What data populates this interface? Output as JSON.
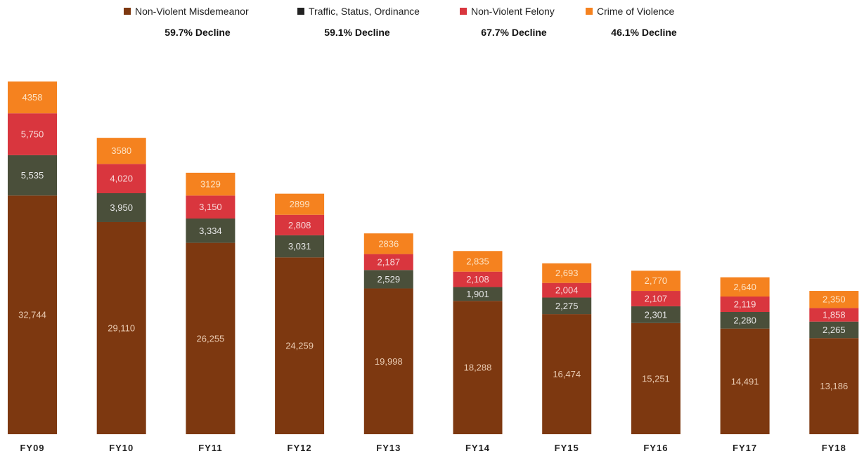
{
  "legend": [
    {
      "name": "Non-Violent Misdemeanor",
      "color": "#7d3810",
      "decline": "59.7% Decline"
    },
    {
      "name": "Traffic, Status, Ordinance",
      "color": "#4a4f3a",
      "decline": "59.1% Decline"
    },
    {
      "name": "Non-Violent Felony",
      "color": "#d9363e",
      "decline": "67.7% Decline"
    },
    {
      "name": "Crime of Violence",
      "color": "#f5821f",
      "decline": "46.1% Decline"
    }
  ],
  "chart_data": {
    "type": "bar",
    "stacked": true,
    "title": "",
    "xlabel": "",
    "ylabel": "",
    "categories": [
      "FY09",
      "FY10",
      "FY11",
      "FY12",
      "FY13",
      "FY14",
      "FY15",
      "FY16",
      "FY17",
      "FY18"
    ],
    "series": [
      {
        "name": "Non-Violent Misdemeanor",
        "color": "#7d3810",
        "values": [
          32744,
          29110,
          26255,
          24259,
          19998,
          18288,
          16474,
          15251,
          14491,
          13186
        ],
        "labels": [
          "32,744",
          "29,110",
          "26,255",
          "24,259",
          "19,998",
          "18,288",
          "16,474",
          "15,251",
          "14,491",
          "13,186"
        ]
      },
      {
        "name": "Traffic, Status, Ordinance",
        "color": "#4a4f3a",
        "values": [
          5535,
          3950,
          3334,
          3031,
          2529,
          1901,
          2275,
          2301,
          2280,
          2265
        ],
        "labels": [
          "5,535",
          "3,950",
          "3,334",
          "3,031",
          "2,529",
          "1,901",
          "2,275",
          "2,301",
          "2,280",
          "2,265"
        ]
      },
      {
        "name": "Non-Violent Felony",
        "color": "#d9363e",
        "values": [
          5750,
          4020,
          3150,
          2808,
          2187,
          2108,
          2004,
          2107,
          2119,
          1858
        ],
        "labels": [
          "5,750",
          "4,020",
          "3,150",
          "2,808",
          "2,187",
          "2,108",
          "2,004",
          "2,107",
          "2,119",
          "1,858"
        ]
      },
      {
        "name": "Crime of Violence",
        "color": "#f5821f",
        "values": [
          4358,
          3580,
          3129,
          2899,
          2836,
          2835,
          2693,
          2770,
          2640,
          2350
        ],
        "labels": [
          "4358",
          "3580",
          "3129",
          "2899",
          "2836",
          "2,835",
          "2,693",
          "2,770",
          "2,640",
          "2,350"
        ]
      }
    ],
    "grid": false,
    "legend_position": "top"
  }
}
